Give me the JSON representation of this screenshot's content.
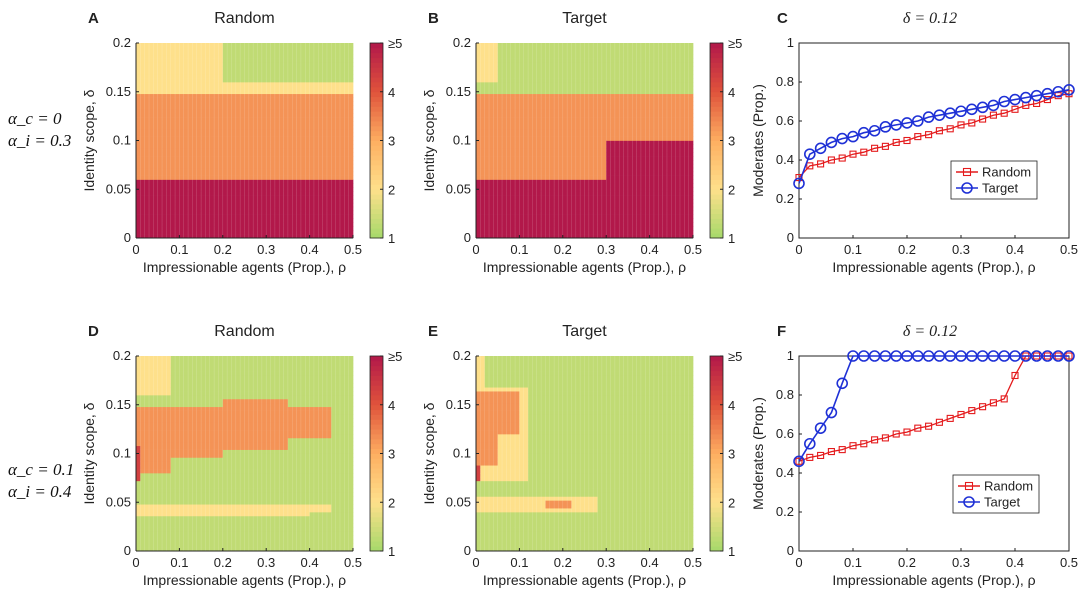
{
  "figure": {
    "row_labels": [
      {
        "alpha_c": "α_c = 0",
        "alpha_i": "α_i = 0.3"
      },
      {
        "alpha_c": "α_c = 0.1",
        "alpha_i": "α_i = 0.4"
      }
    ],
    "colorbar": {
      "ticks": [
        "1",
        "2",
        "3",
        "4",
        "≥5"
      ],
      "colors": [
        "#a6d96a",
        "#fee08b",
        "#fdae61",
        "#e0533b",
        "#b2184a"
      ]
    }
  },
  "chart_data": [
    {
      "panel": "A",
      "type": "heatmap",
      "title": "Random",
      "xlabel": "Impressionable agents (Prop.), ρ",
      "ylabel": "Identity scope, δ",
      "xlim": [
        0,
        0.5
      ],
      "ylim": [
        0,
        0.2
      ],
      "xticks": [
        "0",
        "0.1",
        "0.2",
        "0.3",
        "0.4",
        "0.5"
      ],
      "yticks": [
        "0",
        "0.05",
        "0.1",
        "0.15",
        "0.2"
      ],
      "clim": [
        1,
        5
      ],
      "regions": [
        {
          "value": 5.0,
          "x": [
            0,
            0.5
          ],
          "y": [
            0,
            0.06
          ]
        },
        {
          "value": 3.3,
          "x": [
            0,
            0.5
          ],
          "y": [
            0.06,
            0.15
          ]
        },
        {
          "value": 2.0,
          "x": [
            0,
            0.5
          ],
          "y": [
            0.15,
            0.16
          ]
        },
        {
          "value": 2.0,
          "x": [
            0,
            0.2
          ],
          "y": [
            0.16,
            0.2
          ]
        },
        {
          "value": 1.3,
          "x": [
            0.2,
            0.5
          ],
          "y": [
            0.16,
            0.2
          ]
        }
      ]
    },
    {
      "panel": "B",
      "type": "heatmap",
      "title": "Target",
      "xlabel": "Impressionable agents (Prop.), ρ",
      "ylabel": "Identity scope, δ",
      "xlim": [
        0,
        0.5
      ],
      "ylim": [
        0,
        0.2
      ],
      "xticks": [
        "0",
        "0.1",
        "0.2",
        "0.3",
        "0.4",
        "0.5"
      ],
      "yticks": [
        "0",
        "0.05",
        "0.1",
        "0.15",
        "0.2"
      ],
      "clim": [
        1,
        5
      ],
      "regions": [
        {
          "value": 5.0,
          "x": [
            0,
            0.1
          ],
          "y": [
            0,
            0.06
          ]
        },
        {
          "value": 5.0,
          "x": [
            0.1,
            0.3
          ],
          "y": [
            0,
            0.07
          ]
        },
        {
          "value": 5.0,
          "x": [
            0.3,
            0.5
          ],
          "y": [
            0,
            0.1
          ]
        },
        {
          "value": 3.3,
          "x": [
            0,
            0.3
          ],
          "y": [
            0.06,
            0.15
          ]
        },
        {
          "value": 3.3,
          "x": [
            0.3,
            0.5
          ],
          "y": [
            0.1,
            0.15
          ]
        },
        {
          "value": 2.0,
          "x": [
            0,
            0.05
          ],
          "y": [
            0.16,
            0.2
          ]
        },
        {
          "value": 1.3,
          "x": [
            0.05,
            0.5
          ],
          "y": [
            0.15,
            0.2
          ]
        }
      ]
    },
    {
      "panel": "C",
      "type": "line",
      "title": "δ = 0.12",
      "xlabel": "Impressionable agents (Prop.), ρ",
      "ylabel": "Moderates (Prop.)",
      "xlim": [
        0,
        0.5
      ],
      "ylim": [
        0,
        1
      ],
      "xticks": [
        "0",
        "0.1",
        "0.2",
        "0.3",
        "0.4",
        "0.5"
      ],
      "yticks": [
        "0",
        "0.2",
        "0.4",
        "0.6",
        "0.8",
        "1"
      ],
      "legend": "center-right",
      "x": [
        0,
        0.02,
        0.04,
        0.06,
        0.08,
        0.1,
        0.12,
        0.14,
        0.16,
        0.18,
        0.2,
        0.22,
        0.24,
        0.26,
        0.28,
        0.3,
        0.32,
        0.34,
        0.36,
        0.38,
        0.4,
        0.42,
        0.44,
        0.46,
        0.48,
        0.5
      ],
      "series": [
        {
          "name": "Random",
          "color": "#e41a1c",
          "marker": "square",
          "values": [
            0.31,
            0.37,
            0.38,
            0.4,
            0.41,
            0.43,
            0.44,
            0.46,
            0.47,
            0.49,
            0.5,
            0.52,
            0.53,
            0.55,
            0.56,
            0.58,
            0.59,
            0.61,
            0.63,
            0.64,
            0.66,
            0.68,
            0.69,
            0.71,
            0.73,
            0.74
          ]
        },
        {
          "name": "Target",
          "color": "#1f31d6",
          "marker": "circle",
          "values": [
            0.28,
            0.43,
            0.46,
            0.49,
            0.51,
            0.52,
            0.54,
            0.55,
            0.57,
            0.58,
            0.59,
            0.6,
            0.62,
            0.63,
            0.64,
            0.65,
            0.66,
            0.67,
            0.68,
            0.7,
            0.71,
            0.72,
            0.73,
            0.74,
            0.75,
            0.76
          ]
        }
      ]
    },
    {
      "panel": "D",
      "type": "heatmap",
      "title": "Random",
      "xlabel": "Impressionable agents (Prop.), ρ",
      "ylabel": "Identity scope, δ",
      "xlim": [
        0,
        0.5
      ],
      "ylim": [
        0,
        0.2
      ],
      "xticks": [
        "0",
        "0.1",
        "0.2",
        "0.3",
        "0.4",
        "0.5"
      ],
      "yticks": [
        "0",
        "0.05",
        "0.1",
        "0.15",
        "0.2"
      ],
      "clim": [
        1,
        5
      ],
      "regions": [
        {
          "value": 1.3,
          "x": [
            0,
            0.5
          ],
          "y": [
            0,
            0.2
          ]
        },
        {
          "value": 2.0,
          "x": [
            0,
            0.08
          ],
          "y": [
            0.16,
            0.2
          ]
        },
        {
          "value": 2.0,
          "x": [
            0,
            0.4
          ],
          "y": [
            0.035,
            0.05
          ]
        },
        {
          "value": 2.0,
          "x": [
            0.4,
            0.45
          ],
          "y": [
            0.04,
            0.05
          ]
        },
        {
          "value": 3.3,
          "x": [
            0,
            0.08
          ],
          "y": [
            0.08,
            0.15
          ]
        },
        {
          "value": 3.3,
          "x": [
            0.08,
            0.2
          ],
          "y": [
            0.095,
            0.15
          ]
        },
        {
          "value": 3.3,
          "x": [
            0.2,
            0.35
          ],
          "y": [
            0.105,
            0.155
          ]
        },
        {
          "value": 3.3,
          "x": [
            0.35,
            0.45
          ],
          "y": [
            0.115,
            0.15
          ]
        },
        {
          "value": 4.3,
          "x": [
            0,
            0.01
          ],
          "y": [
            0.07,
            0.11
          ]
        }
      ]
    },
    {
      "panel": "E",
      "type": "heatmap",
      "title": "Target",
      "xlabel": "Impressionable agents (Prop.), ρ",
      "ylabel": "Identity scope, δ",
      "xlim": [
        0,
        0.5
      ],
      "ylim": [
        0,
        0.2
      ],
      "xticks": [
        "0",
        "0.1",
        "0.2",
        "0.3",
        "0.4",
        "0.5"
      ],
      "yticks": [
        "0",
        "0.05",
        "0.1",
        "0.15",
        "0.2"
      ],
      "clim": [
        1,
        5
      ],
      "regions": [
        {
          "value": 1.3,
          "x": [
            0,
            0.5
          ],
          "y": [
            0,
            0.2
          ]
        },
        {
          "value": 2.0,
          "x": [
            0,
            0.02
          ],
          "y": [
            0.17,
            0.2
          ]
        },
        {
          "value": 2.0,
          "x": [
            0,
            0.12
          ],
          "y": [
            0.07,
            0.17
          ]
        },
        {
          "value": 2.0,
          "x": [
            0,
            0.28
          ],
          "y": [
            0.04,
            0.055
          ]
        },
        {
          "value": 3.3,
          "x": [
            0,
            0.05
          ],
          "y": [
            0.09,
            0.165
          ]
        },
        {
          "value": 3.3,
          "x": [
            0.05,
            0.1
          ],
          "y": [
            0.12,
            0.165
          ]
        },
        {
          "value": 3.3,
          "x": [
            0.16,
            0.22
          ],
          "y": [
            0.043,
            0.052
          ]
        },
        {
          "value": 4.3,
          "x": [
            0,
            0.01
          ],
          "y": [
            0.07,
            0.09
          ]
        }
      ]
    },
    {
      "panel": "F",
      "type": "line",
      "title": "δ = 0.12",
      "xlabel": "Impressionable agents (Prop.), ρ",
      "ylabel": "Moderates (Prop.)",
      "xlim": [
        0,
        0.5
      ],
      "ylim": [
        0,
        1
      ],
      "xticks": [
        "0",
        "0.1",
        "0.2",
        "0.3",
        "0.4",
        "0.5"
      ],
      "yticks": [
        "0",
        "0.2",
        "0.4",
        "0.6",
        "0.8",
        "1"
      ],
      "legend": "bottom-right",
      "x": [
        0,
        0.02,
        0.04,
        0.06,
        0.08,
        0.1,
        0.12,
        0.14,
        0.16,
        0.18,
        0.2,
        0.22,
        0.24,
        0.26,
        0.28,
        0.3,
        0.32,
        0.34,
        0.36,
        0.38,
        0.4,
        0.42,
        0.44,
        0.46,
        0.48,
        0.5
      ],
      "series": [
        {
          "name": "Random",
          "color": "#e41a1c",
          "marker": "square",
          "values": [
            0.46,
            0.48,
            0.49,
            0.51,
            0.52,
            0.54,
            0.55,
            0.57,
            0.58,
            0.6,
            0.61,
            0.63,
            0.64,
            0.66,
            0.68,
            0.7,
            0.72,
            0.74,
            0.76,
            0.78,
            0.9,
            1.0,
            1.0,
            1.0,
            1.0,
            1.0
          ]
        },
        {
          "name": "Target",
          "color": "#1f31d6",
          "marker": "circle",
          "values": [
            0.46,
            0.55,
            0.63,
            0.71,
            0.86,
            1.0,
            1.0,
            1.0,
            1.0,
            1.0,
            1.0,
            1.0,
            1.0,
            1.0,
            1.0,
            1.0,
            1.0,
            1.0,
            1.0,
            1.0,
            1.0,
            1.0,
            1.0,
            1.0,
            1.0,
            1.0
          ]
        }
      ]
    }
  ]
}
